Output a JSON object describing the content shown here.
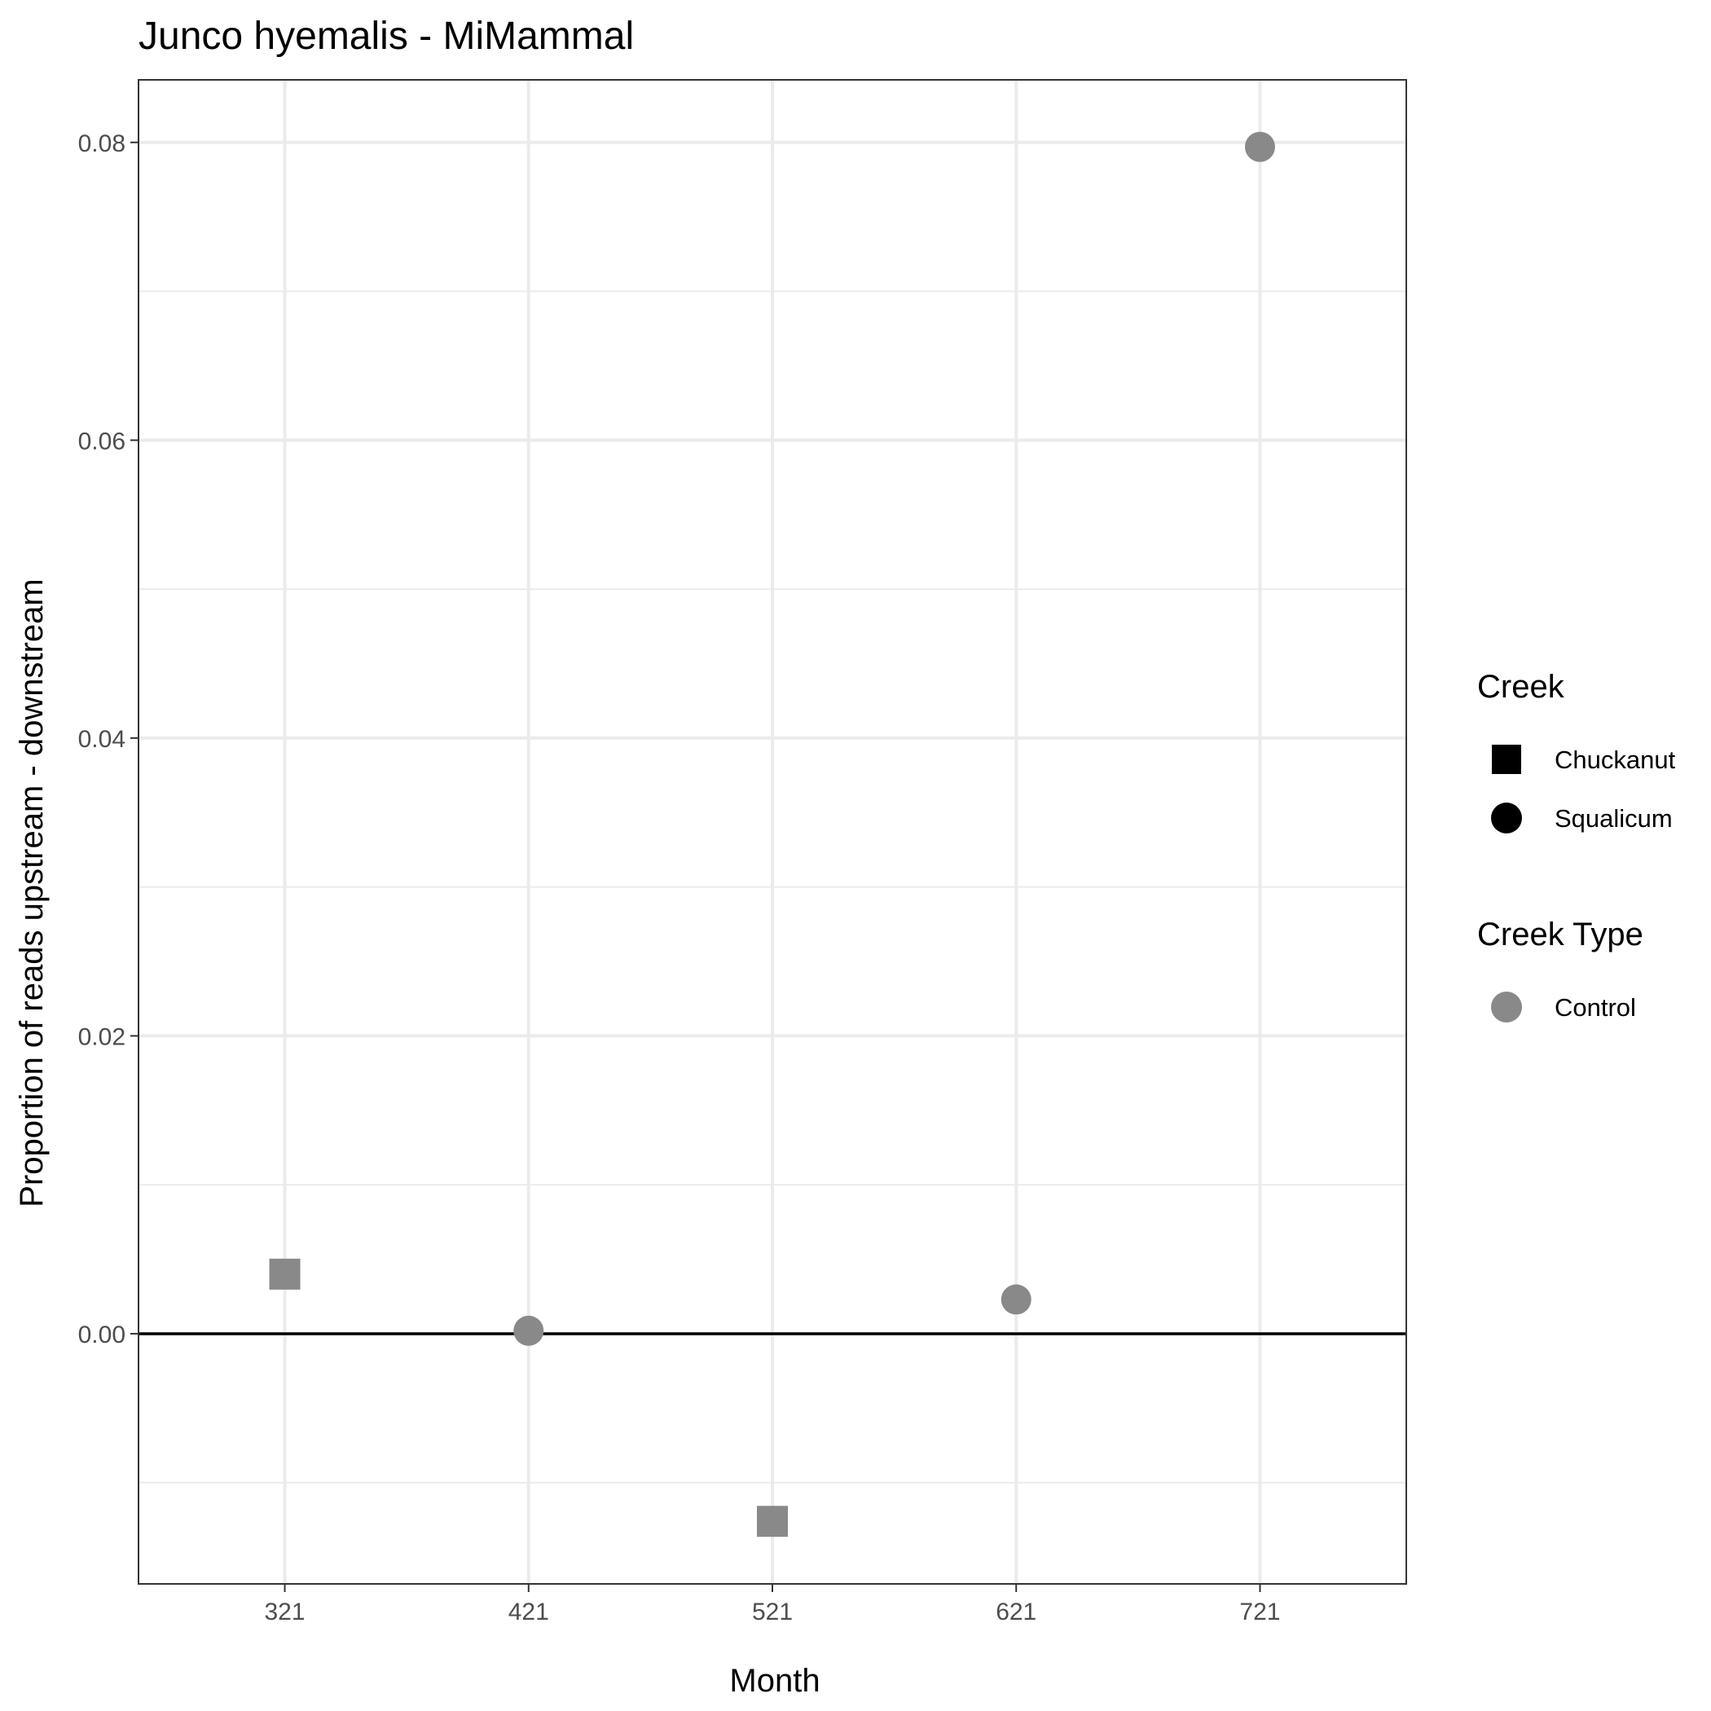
{
  "chart_data": {
    "type": "scatter",
    "title": "Junco hyemalis - MiMammal",
    "xlabel": "Month",
    "ylabel": "Proportion of reads upstream - downstream",
    "x_categories": [
      "321",
      "421",
      "521",
      "621",
      "721"
    ],
    "ylim": [
      -0.0168,
      0.0842
    ],
    "y_ticks": [
      0.0,
      0.02,
      0.04,
      0.06,
      0.08
    ],
    "y_tick_labels": [
      "0.00",
      "0.02",
      "0.04",
      "0.06",
      "0.08"
    ],
    "grid": true,
    "reference_line_y": 0,
    "points": [
      {
        "x": "321",
        "y": 0.004,
        "creek": "Chuckanut",
        "creek_type": "Control"
      },
      {
        "x": "421",
        "y": 0.0002,
        "creek": "Squalicum",
        "creek_type": "Control"
      },
      {
        "x": "521",
        "y": -0.0126,
        "creek": "Chuckanut",
        "creek_type": "Control"
      },
      {
        "x": "621",
        "y": 0.0023,
        "creek": "Squalicum",
        "creek_type": "Control"
      },
      {
        "x": "721",
        "y": 0.0797,
        "creek": "Squalicum",
        "creek_type": "Control"
      }
    ],
    "legend": {
      "position": "right",
      "groups": [
        {
          "title": "Creek",
          "entries": [
            {
              "label": "Chuckanut",
              "shape": "square",
              "color": "#000000"
            },
            {
              "label": "Squalicum",
              "shape": "circle",
              "color": "#000000"
            }
          ]
        },
        {
          "title": "Creek Type",
          "entries": [
            {
              "label": "Control",
              "shape": "circle",
              "color": "#898989"
            }
          ]
        }
      ]
    },
    "colors": {
      "point": "#898989",
      "grid": "#ebebeb",
      "panel_border": "#333333",
      "reference_line": "#000000"
    }
  }
}
